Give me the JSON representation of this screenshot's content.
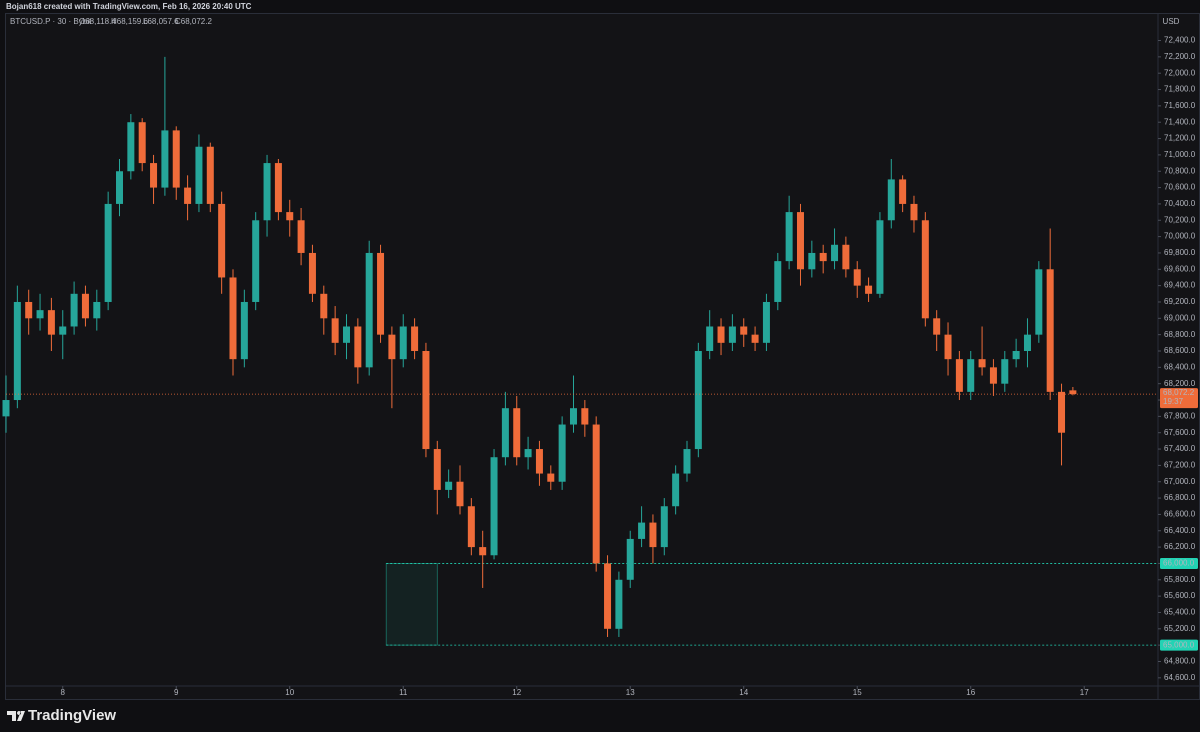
{
  "chart_data": {
    "type": "candlestick",
    "credit": "Bojan618 created with TradingView.com, Feb 16, 2026 20:40 UTC",
    "symbol": "BTCUSD.P · 30 · Bybit",
    "ohlc_labels": [
      "O68,118.4",
      "H68,159.6",
      "L68,057.6",
      "C68,072.2"
    ],
    "currency": "USD",
    "brand": "TradingView",
    "up_color": "#26a69a",
    "down_color": "#ef6c3a",
    "xlim": [
      7.5,
      17.65
    ],
    "xticks": [
      8,
      9,
      10,
      11,
      12,
      13,
      14,
      15,
      16,
      17
    ],
    "ylim": [
      64500,
      72700
    ],
    "yticks": [
      {
        "value": 64600,
        "label": "64,600.0"
      },
      {
        "value": 64800,
        "label": "64,800.0"
      },
      {
        "value": 65000,
        "label": "65,000.0"
      },
      {
        "value": 65200,
        "label": "65,200.0"
      },
      {
        "value": 65400,
        "label": "65,400.0"
      },
      {
        "value": 65600,
        "label": "65,600.0"
      },
      {
        "value": 65800,
        "label": "65,800.0"
      },
      {
        "value": 66000,
        "label": "66,000.0"
      },
      {
        "value": 66200,
        "label": "66,200.0"
      },
      {
        "value": 66400,
        "label": "66,400.0"
      },
      {
        "value": 66600,
        "label": "66,600.0"
      },
      {
        "value": 66800,
        "label": "66,800.0"
      },
      {
        "value": 67000,
        "label": "67,000.0"
      },
      {
        "value": 67200,
        "label": "67,200.0"
      },
      {
        "value": 67400,
        "label": "67,400.0"
      },
      {
        "value": 67600,
        "label": "67,600.0"
      },
      {
        "value": 67800,
        "label": "67,800.0"
      },
      {
        "value": 68000,
        "label": "68,000.0"
      },
      {
        "value": 68200,
        "label": "68,200.0"
      },
      {
        "value": 68400,
        "label": "68,400.0"
      },
      {
        "value": 68600,
        "label": "68,600.0"
      },
      {
        "value": 68800,
        "label": "68,800.0"
      },
      {
        "value": 69000,
        "label": "69,000.0"
      },
      {
        "value": 69200,
        "label": "69,200.0"
      },
      {
        "value": 69400,
        "label": "69,400.0"
      },
      {
        "value": 69600,
        "label": "69,600.0"
      },
      {
        "value": 69800,
        "label": "69,800.0"
      },
      {
        "value": 70000,
        "label": "70,000.0"
      },
      {
        "value": 70200,
        "label": "70,200.0"
      },
      {
        "value": 70400,
        "label": "70,400.0"
      },
      {
        "value": 70600,
        "label": "70,600.0"
      },
      {
        "value": 70800,
        "label": "70,800.0"
      },
      {
        "value": 71000,
        "label": "71,000.0"
      },
      {
        "value": 71200,
        "label": "71,200.0"
      },
      {
        "value": 71400,
        "label": "71,400.0"
      },
      {
        "value": 71600,
        "label": "71,600.0"
      },
      {
        "value": 71800,
        "label": "71,800.0"
      },
      {
        "value": 72000,
        "label": "72,000.0"
      },
      {
        "value": 72200,
        "label": "72,200.0"
      },
      {
        "value": 72400,
        "label": "72,400.0"
      }
    ],
    "grid": false,
    "x": [
      7.5,
      7.6,
      7.7,
      7.8,
      7.9,
      8.0,
      8.1,
      8.2,
      8.3,
      8.4,
      8.5,
      8.6,
      8.7,
      8.8,
      8.9,
      9.0,
      9.1,
      9.2,
      9.3,
      9.4,
      9.5,
      9.6,
      9.7,
      9.8,
      9.9,
      10.0,
      10.1,
      10.2,
      10.3,
      10.4,
      10.5,
      10.6,
      10.7,
      10.8,
      10.9,
      11.0,
      11.1,
      11.2,
      11.3,
      11.4,
      11.5,
      11.6,
      11.7,
      11.8,
      11.9,
      12.0,
      12.1,
      12.2,
      12.3,
      12.4,
      12.5,
      12.6,
      12.7,
      12.8,
      12.9,
      13.0,
      13.1,
      13.2,
      13.3,
      13.4,
      13.5,
      13.6,
      13.7,
      13.8,
      13.9,
      14.0,
      14.1,
      14.2,
      14.3,
      14.4,
      14.5,
      14.6,
      14.7,
      14.8,
      14.9,
      15.0,
      15.1,
      15.2,
      15.3,
      15.4,
      15.5,
      15.6,
      15.7,
      15.8,
      15.9,
      16.0,
      16.1,
      16.2,
      16.3,
      16.4,
      16.5,
      16.6,
      16.7,
      16.8,
      16.9
    ],
    "open": [
      67800,
      68000,
      69200,
      69000,
      69100,
      68800,
      68900,
      69300,
      69000,
      69200,
      70400,
      70800,
      71400,
      70900,
      70600,
      71300,
      70600,
      70400,
      71100,
      70400,
      69500,
      68500,
      69200,
      70200,
      70900,
      70300,
      70200,
      69800,
      69300,
      69000,
      68700,
      68900,
      68400,
      69800,
      68800,
      68500,
      68900,
      68600,
      67400,
      66900,
      67000,
      66700,
      66200,
      66100,
      67300,
      67900,
      67300,
      67400,
      67100,
      67000,
      67700,
      67900,
      67700,
      66000,
      65200,
      65800,
      66300,
      66500,
      66200,
      66700,
      67100,
      67400,
      68600,
      68900,
      68700,
      68900,
      68800,
      68700,
      69200,
      69700,
      70300,
      69600,
      69800,
      69700,
      69900,
      69600,
      69400,
      69300,
      70200,
      70700,
      70400,
      70200,
      69000,
      68800,
      68500,
      68100,
      68500,
      68400,
      68200,
      68500,
      68600,
      68800,
      69600,
      68100,
      68118.4
    ],
    "high": [
      68300,
      69400,
      69350,
      69300,
      69250,
      69100,
      69450,
      69400,
      69350,
      70550,
      70950,
      71500,
      71450,
      71000,
      72200,
      71350,
      70750,
      71250,
      71150,
      70550,
      69600,
      69350,
      70300,
      71000,
      70950,
      70450,
      70350,
      69900,
      69400,
      69150,
      69050,
      69000,
      69950,
      69900,
      68900,
      69050,
      69000,
      68700,
      67500,
      67150,
      67200,
      66800,
      66400,
      67400,
      68100,
      68050,
      67550,
      67500,
      67200,
      67800,
      68300,
      68000,
      67800,
      66100,
      65900,
      66400,
      66700,
      66600,
      66800,
      67200,
      67500,
      68700,
      69100,
      69000,
      69050,
      69000,
      68900,
      69300,
      69800,
      70500,
      70400,
      69950,
      69900,
      70100,
      70000,
      69700,
      69500,
      70300,
      70950,
      70750,
      70500,
      70300,
      69100,
      68950,
      68600,
      68600,
      68900,
      68500,
      68600,
      68750,
      69000,
      69700,
      70100,
      68200,
      68159.6
    ],
    "low": [
      67600,
      67900,
      68800,
      68850,
      68600,
      68500,
      68800,
      68900,
      68850,
      69100,
      70250,
      70700,
      70800,
      70400,
      70500,
      70450,
      70200,
      70300,
      70300,
      69300,
      68300,
      68400,
      69100,
      70000,
      70200,
      70000,
      69650,
      69200,
      68800,
      68550,
      68500,
      68200,
      68300,
      68700,
      67900,
      68400,
      68500,
      67300,
      66600,
      66800,
      66600,
      66100,
      65700,
      66050,
      67200,
      67200,
      67150,
      66950,
      66900,
      66900,
      67600,
      67550,
      65900,
      65100,
      65100,
      65700,
      66200,
      66000,
      66100,
      66600,
      67000,
      67300,
      68500,
      68550,
      68600,
      68650,
      68600,
      68600,
      69100,
      69600,
      69400,
      69500,
      69550,
      69600,
      69500,
      69250,
      69200,
      69250,
      70100,
      70300,
      70050,
      68900,
      68600,
      68300,
      68000,
      68000,
      68300,
      68050,
      68100,
      68400,
      68400,
      68700,
      68000,
      67200,
      68057.6
    ],
    "close": [
      68000,
      69200,
      69000,
      69100,
      68800,
      68900,
      69300,
      69000,
      69200,
      70400,
      70800,
      71400,
      70900,
      70600,
      71300,
      70600,
      70400,
      71100,
      70400,
      69500,
      68500,
      69200,
      70200,
      70900,
      70300,
      70200,
      69800,
      69300,
      69000,
      68700,
      68900,
      68400,
      69800,
      68800,
      68500,
      68900,
      68600,
      67400,
      66900,
      67000,
      66700,
      66200,
      66100,
      67300,
      67900,
      67300,
      67400,
      67100,
      67000,
      67700,
      67900,
      67700,
      66000,
      65200,
      65800,
      66300,
      66500,
      66200,
      66700,
      67100,
      67400,
      68600,
      68900,
      68700,
      68900,
      68800,
      68700,
      69200,
      69700,
      70300,
      69600,
      69800,
      69700,
      69900,
      69600,
      69400,
      69300,
      70200,
      70700,
      70400,
      70200,
      69000,
      68800,
      68500,
      68100,
      68500,
      68400,
      68200,
      68500,
      68600,
      68800,
      69600,
      68100,
      67600,
      68072.2
    ],
    "levels": [
      {
        "value": 66000,
        "label": "66,000.0"
      },
      {
        "value": 65000,
        "label": "65,000.0"
      }
    ],
    "level_color": "#22d3b4",
    "zone": {
      "x": [
        10.85,
        11.3
      ],
      "y": [
        65000,
        66000
      ]
    },
    "last_price": {
      "value": 68072.2,
      "label": "68,072.2",
      "countdown": "19:37"
    }
  }
}
